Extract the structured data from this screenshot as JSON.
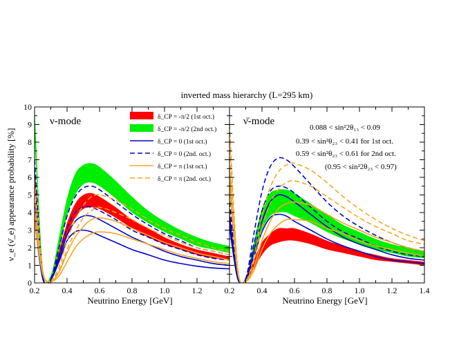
{
  "figure_title": "inverted mass hierarchy (L=295 km)",
  "ylabel": "ν_e (ν̄_e) appearance probability [%]",
  "xlabel": "Neutrino Energy [GeV]",
  "colors": {
    "red": "#ff0000",
    "green": "#00ee00",
    "blue": "#0000cc",
    "orange": "#f5a623"
  },
  "legend": [
    {
      "kind": "band",
      "color": "#ff0000",
      "label": "δ_CP = -π/2 (1st oct.)"
    },
    {
      "kind": "band",
      "color": "#00ee00",
      "label": "δ_CP = -π/2 (2nd oct.)"
    },
    {
      "kind": "solid",
      "color": "#0000cc",
      "label": "δ_CP = 0 (1st oct.)"
    },
    {
      "kind": "dashed",
      "color": "#0000cc",
      "label": "δ_CP = 0 (2nd. oct.)"
    },
    {
      "kind": "solid",
      "color": "#f5a623",
      "label": "δ_CP = π (1st oct.)"
    },
    {
      "kind": "dashed",
      "color": "#f5a623",
      "label": "δ_CP = π (2nd. oct.)"
    }
  ],
  "conditions": [
    "0.088 < sin²2θ₁₃ < 0.09",
    "0.39 < sin²θ₂₃ < 0.41 for 1st oct.",
    "0.59 < sin²θ₂₃ < 0.61 for 2nd oct.",
    "(0.95 < sin²2θ₂₃ < 0.97)"
  ],
  "chart_data": [
    {
      "type": "area",
      "title": "ν-mode",
      "xlim": [
        0.2,
        1.4
      ],
      "ylim": [
        0,
        10
      ],
      "xticks": [
        "0.2",
        "0.4",
        "0.6",
        "0.8",
        "1.0",
        "1.2"
      ],
      "yticks": [
        "0",
        "1",
        "2",
        "3",
        "4",
        "5",
        "6",
        "7",
        "8",
        "9",
        "10"
      ],
      "x": [
        0.2,
        0.25,
        0.3,
        0.35,
        0.4,
        0.45,
        0.5,
        0.55,
        0.6,
        0.7,
        0.8,
        0.9,
        1.0,
        1.1,
        1.2,
        1.3,
        1.4
      ],
      "series": [
        {
          "name": "δ_CP = -π/2 (1st oct.)",
          "kind": "band",
          "color": "#ff0000",
          "low": [
            5.5,
            0.3,
            0.15,
            1.2,
            2.7,
            3.7,
            4.2,
            4.3,
            4.2,
            3.7,
            3.1,
            2.6,
            2.2,
            1.9,
            1.6,
            1.4,
            1.3
          ],
          "high": [
            6.8,
            0.6,
            0.3,
            1.8,
            3.4,
            4.5,
            5.0,
            5.1,
            4.9,
            4.3,
            3.6,
            3.1,
            2.6,
            2.2,
            1.9,
            1.7,
            1.5
          ]
        },
        {
          "name": "δ_CP = -π/2 (2nd oct.)",
          "kind": "band",
          "color": "#00ee00",
          "low": [
            8.2,
            0.45,
            0.2,
            1.8,
            3.8,
            5.0,
            5.6,
            5.7,
            5.5,
            4.8,
            4.0,
            3.4,
            2.9,
            2.5,
            2.1,
            1.9,
            1.7
          ],
          "high": [
            10.0,
            0.9,
            0.45,
            2.6,
            4.8,
            6.2,
            6.7,
            6.8,
            6.6,
            5.8,
            4.9,
            4.1,
            3.5,
            3.0,
            2.6,
            2.3,
            2.1
          ]
        },
        {
          "name": "δ_CP = 0 (1st oct.)",
          "kind": "solid",
          "color": "#0000cc",
          "y": [
            4.5,
            0.3,
            0.2,
            1.4,
            2.7,
            3.5,
            3.8,
            3.8,
            3.6,
            3.1,
            2.6,
            2.2,
            1.8,
            1.5,
            1.3,
            1.1,
            1.0
          ]
        },
        {
          "name": "δ_CP = 0 (1st oct.)",
          "kind": "solid",
          "color": "#0000cc",
          "y": [
            3.6,
            0.25,
            0.18,
            1.2,
            2.4,
            2.9,
            3.0,
            2.9,
            2.7,
            2.3,
            1.9,
            1.6,
            1.3,
            1.1,
            0.95,
            0.85,
            0.8
          ]
        },
        {
          "name": "δ_CP = 0 (2nd. oct.)",
          "kind": "dashed",
          "color": "#0000cc",
          "y": [
            7.0,
            0.45,
            0.25,
            2.0,
            3.8,
            4.9,
            5.4,
            5.5,
            5.3,
            4.6,
            3.9,
            3.3,
            2.8,
            2.4,
            2.0,
            1.8,
            1.6
          ]
        },
        {
          "name": "δ_CP = 0 (2nd. oct.)",
          "kind": "dashed",
          "color": "#0000cc",
          "y": [
            6.2,
            0.4,
            0.22,
            1.6,
            3.1,
            4.0,
            4.3,
            4.3,
            4.1,
            3.6,
            3.0,
            2.6,
            2.2,
            1.9,
            1.6,
            1.4,
            1.3
          ]
        },
        {
          "name": "δ_CP = π (1st oct.)",
          "kind": "solid",
          "color": "#f5a623",
          "y": [
            4.2,
            0.6,
            0.1,
            0.6,
            1.7,
            2.6,
            3.2,
            3.6,
            3.7,
            3.5,
            3.1,
            2.7,
            2.3,
            2.0,
            1.7,
            1.5,
            1.3
          ]
        },
        {
          "name": "δ_CP = π (1st oct.)",
          "kind": "solid",
          "color": "#f5a623",
          "y": [
            3.5,
            0.5,
            0.08,
            0.4,
            1.2,
            2.0,
            2.5,
            2.8,
            2.9,
            2.8,
            2.5,
            2.2,
            1.9,
            1.6,
            1.4,
            1.2,
            1.1
          ]
        },
        {
          "name": "δ_CP = π (2nd. oct.)",
          "kind": "dashed",
          "color": "#f5a623",
          "y": [
            5.8,
            0.7,
            0.12,
            0.9,
            2.4,
            3.6,
            4.4,
            4.9,
            5.0,
            4.7,
            4.2,
            3.6,
            3.1,
            2.7,
            2.3,
            2.0,
            1.8
          ]
        },
        {
          "name": "δ_CP = π (2nd. oct.)",
          "kind": "dashed",
          "color": "#f5a623",
          "y": [
            5.0,
            0.65,
            0.1,
            0.7,
            1.9,
            2.9,
            3.7,
            4.1,
            4.3,
            4.0,
            3.6,
            3.1,
            2.7,
            2.3,
            2.0,
            1.8,
            1.6
          ]
        }
      ]
    },
    {
      "type": "area",
      "title": "ν̄-mode",
      "xlim": [
        0.2,
        1.4
      ],
      "ylim": [
        0,
        10
      ],
      "xticks": [
        "0.2",
        "0.4",
        "0.6",
        "0.8",
        "1.0",
        "1.2",
        "1.4"
      ],
      "x": [
        0.2,
        0.25,
        0.3,
        0.35,
        0.4,
        0.45,
        0.5,
        0.55,
        0.6,
        0.7,
        0.8,
        0.9,
        1.0,
        1.1,
        1.2,
        1.3,
        1.4
      ],
      "series": [
        {
          "name": "δ_CP = -π/2 (1st oct.)",
          "kind": "band",
          "color": "#ff0000",
          "low": [
            3.0,
            0.2,
            0.1,
            0.8,
            1.6,
            2.1,
            2.3,
            2.4,
            2.4,
            2.2,
            1.9,
            1.7,
            1.5,
            1.3,
            1.2,
            1.1,
            1.0
          ],
          "high": [
            4.2,
            0.4,
            0.2,
            1.3,
            2.3,
            2.8,
            3.1,
            3.1,
            3.1,
            2.8,
            2.4,
            2.1,
            1.8,
            1.6,
            1.4,
            1.3,
            1.2
          ]
        },
        {
          "name": "δ_CP = -π/2 (2nd oct.)",
          "kind": "band",
          "color": "#00ee00",
          "low": [
            5.5,
            0.3,
            0.15,
            1.5,
            3.0,
            3.8,
            4.0,
            4.0,
            3.8,
            3.4,
            2.9,
            2.5,
            2.2,
            1.9,
            1.7,
            1.5,
            1.4
          ],
          "high": [
            7.0,
            0.6,
            0.3,
            2.3,
            4.2,
            5.1,
            5.3,
            5.3,
            5.1,
            4.5,
            3.9,
            3.3,
            2.9,
            2.5,
            2.2,
            2.0,
            1.8
          ]
        },
        {
          "name": "δ_CP = 0 (1st oct.)",
          "kind": "solid",
          "color": "#0000cc",
          "y": [
            3.8,
            0.3,
            0.2,
            1.8,
            3.5,
            4.6,
            5.0,
            4.9,
            4.6,
            3.9,
            3.2,
            2.6,
            2.2,
            1.9,
            1.6,
            1.4,
            1.3
          ]
        },
        {
          "name": "δ_CP = 0 (1st oct.)",
          "kind": "solid",
          "color": "#0000cc",
          "y": [
            3.2,
            0.25,
            0.18,
            1.5,
            2.9,
            3.7,
            3.9,
            3.8,
            3.5,
            3.0,
            2.5,
            2.1,
            1.8,
            1.5,
            1.3,
            1.2,
            1.1
          ]
        },
        {
          "name": "δ_CP = 0 (2nd. oct.)",
          "kind": "dashed",
          "color": "#0000cc",
          "y": [
            5.5,
            0.5,
            0.25,
            2.8,
            5.2,
            6.6,
            7.1,
            7.0,
            6.6,
            5.6,
            4.6,
            3.8,
            3.2,
            2.7,
            2.3,
            2.0,
            1.8
          ]
        },
        {
          "name": "δ_CP = 0 (2nd. oct.)",
          "kind": "dashed",
          "color": "#0000cc",
          "y": [
            4.6,
            0.4,
            0.22,
            2.2,
            4.1,
            5.2,
            5.5,
            5.4,
            5.1,
            4.3,
            3.5,
            2.9,
            2.5,
            2.1,
            1.8,
            1.6,
            1.5
          ]
        },
        {
          "name": "δ_CP = π (1st oct.)",
          "kind": "solid",
          "color": "#f5a623",
          "y": [
            6.5,
            0.7,
            0.1,
            0.9,
            2.4,
            3.5,
            4.2,
            4.5,
            4.6,
            4.4,
            3.9,
            3.4,
            3.0,
            2.6,
            2.3,
            2.0,
            1.8
          ]
        },
        {
          "name": "δ_CP = π (1st oct.)",
          "kind": "solid",
          "color": "#f5a623",
          "y": [
            5.6,
            0.6,
            0.08,
            0.7,
            1.9,
            2.8,
            3.3,
            3.6,
            3.6,
            3.5,
            3.1,
            2.8,
            2.4,
            2.1,
            1.9,
            1.7,
            1.5
          ]
        },
        {
          "name": "δ_CP = π (2nd. oct.)",
          "kind": "dashed",
          "color": "#f5a623",
          "y": [
            9.0,
            0.9,
            0.12,
            1.5,
            3.8,
            5.4,
            6.3,
            6.7,
            6.8,
            6.4,
            5.7,
            4.9,
            4.2,
            3.6,
            3.1,
            2.7,
            2.4
          ]
        },
        {
          "name": "δ_CP = π (2nd. oct.)",
          "kind": "dashed",
          "color": "#f5a623",
          "y": [
            8.0,
            0.8,
            0.1,
            1.2,
            3.1,
            4.5,
            5.3,
            5.7,
            5.8,
            5.5,
            4.9,
            4.3,
            3.7,
            3.2,
            2.8,
            2.4,
            2.2
          ]
        }
      ]
    }
  ]
}
